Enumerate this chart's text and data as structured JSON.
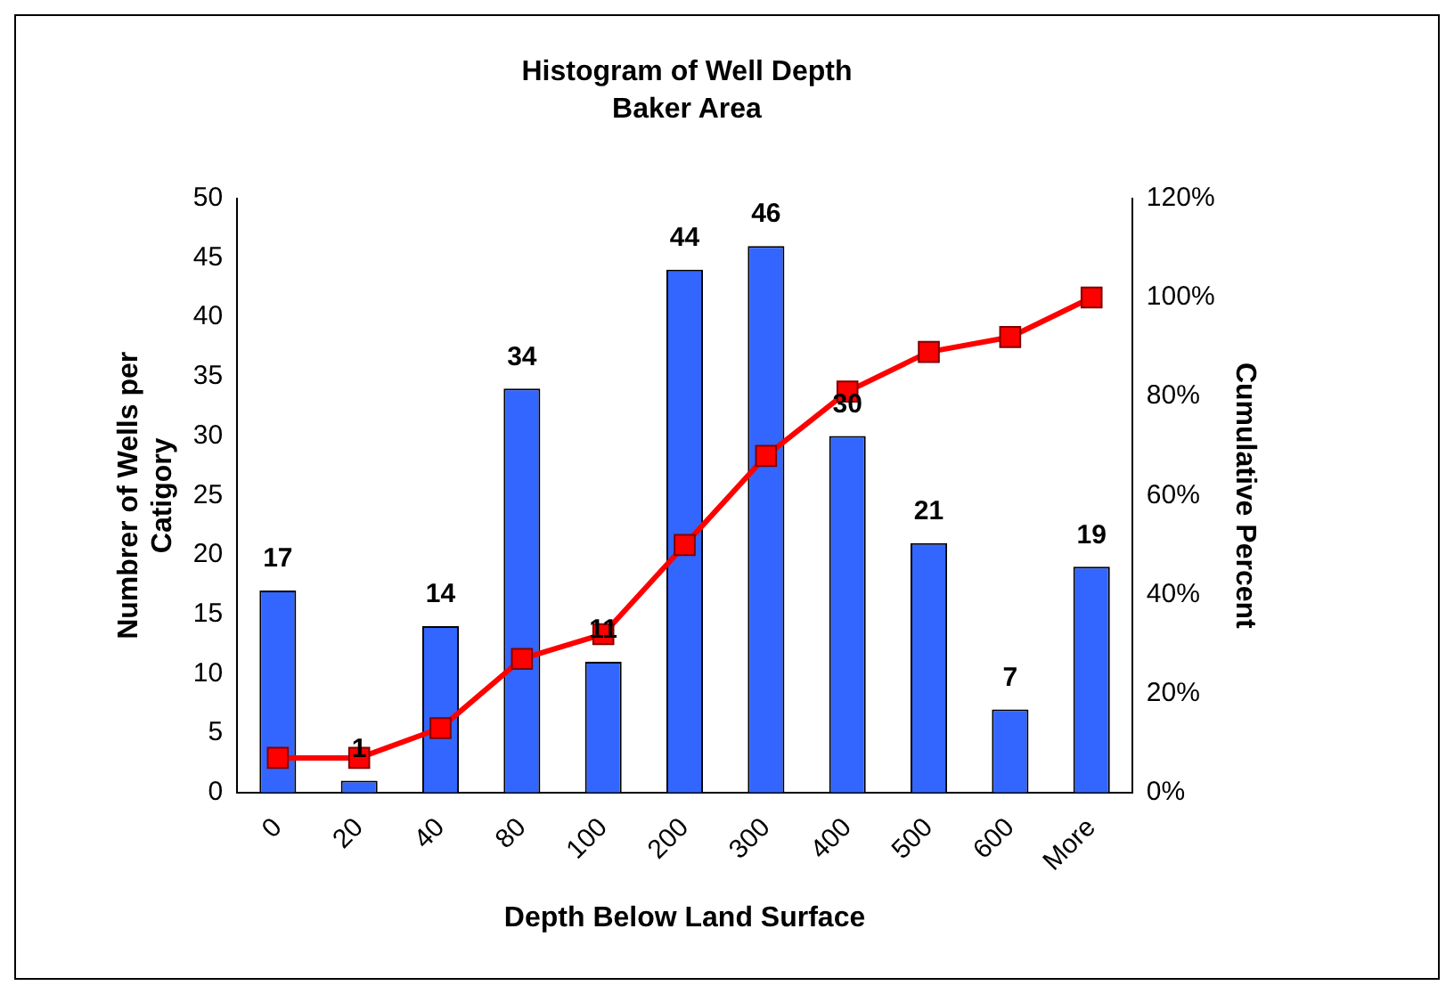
{
  "chart_data": {
    "type": "bar",
    "title": "Histogram of Well Depth",
    "subtitle": "Baker Area",
    "xlabel": "Depth Below Land Surface",
    "ylabel": "Numbrer of Wells per Catigory",
    "y2label": "Cumulative Percent",
    "categories": [
      "0",
      "20",
      "40",
      "80",
      "100",
      "200",
      "300",
      "400",
      "500",
      "600",
      "More"
    ],
    "series": [
      {
        "color": "#3366ff",
        "values": [
          17,
          1,
          14,
          34,
          11,
          44,
          46,
          30,
          21,
          7,
          19
        ],
        "value_labels": [
          "17",
          "1",
          "14",
          "34",
          "11",
          "44",
          "46",
          "30",
          "21",
          "7",
          "19"
        ]
      },
      {
        "type": "line",
        "axis": "y2",
        "color": "#ff0000",
        "marker": "square",
        "values": [
          7,
          7,
          13,
          27,
          32,
          50,
          68,
          81,
          89,
          92,
          100
        ]
      }
    ],
    "ylim": [
      0,
      50
    ],
    "yticks": [
      0,
      5,
      10,
      15,
      20,
      25,
      30,
      35,
      40,
      45,
      50
    ],
    "y2lim": [
      0,
      120
    ],
    "y2ticks": [
      {
        "value": 0,
        "label": "0%"
      },
      {
        "value": 20,
        "label": "20%"
      },
      {
        "value": 40,
        "label": "40%"
      },
      {
        "value": 60,
        "label": "60%"
      },
      {
        "value": 80,
        "label": "80%"
      },
      {
        "value": 100,
        "label": "100%"
      },
      {
        "value": 120,
        "label": "120%"
      }
    ],
    "grid": false,
    "legend": false
  }
}
